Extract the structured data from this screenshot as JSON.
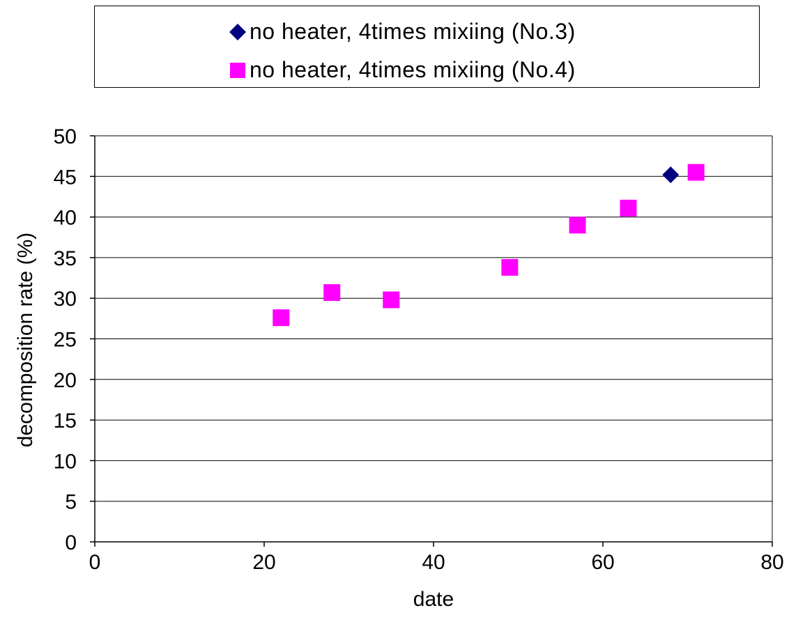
{
  "chart_data": {
    "type": "scatter",
    "title": "",
    "xlabel": "date",
    "ylabel": "decomposition rate (%)",
    "xlim": [
      0,
      80
    ],
    "ylim": [
      0,
      50
    ],
    "x_ticks": [
      0,
      20,
      40,
      60,
      80
    ],
    "y_ticks": [
      0,
      5,
      10,
      15,
      20,
      25,
      30,
      35,
      40,
      45,
      50
    ],
    "grid": "horizontal",
    "legend_position": "top",
    "series": [
      {
        "name": "no heater, 4times mixiing (No.3)",
        "marker": "diamond",
        "color": "#000080",
        "points": [
          {
            "x": 68,
            "y": 45.2
          }
        ]
      },
      {
        "name": "no heater, 4times mixiing (No.4)",
        "marker": "square",
        "color": "#ff00ff",
        "points": [
          {
            "x": 22,
            "y": 27.6
          },
          {
            "x": 28,
            "y": 30.7
          },
          {
            "x": 35,
            "y": 29.8
          },
          {
            "x": 49,
            "y": 33.8
          },
          {
            "x": 57,
            "y": 39.0
          },
          {
            "x": 63,
            "y": 41.1
          },
          {
            "x": 71,
            "y": 45.5
          }
        ]
      }
    ]
  }
}
